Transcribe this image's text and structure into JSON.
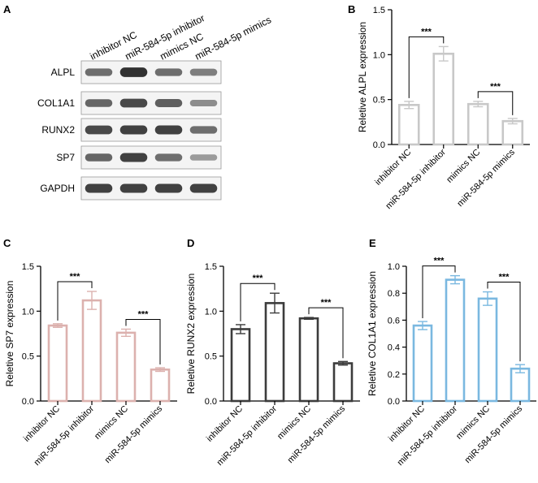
{
  "western_blot": {
    "panel": "A",
    "columns": [
      "inhibitor NC",
      "miR-584-5p inhibitor",
      "mimics NC",
      "miR-584-5p mimics"
    ],
    "rows": [
      "ALPL",
      "COL1A1",
      "RUNX2",
      "SP7",
      "GAPDH"
    ],
    "band_intensity": [
      [
        0.55,
        0.95,
        0.55,
        0.45
      ],
      [
        0.6,
        0.8,
        0.65,
        0.35
      ],
      [
        0.8,
        0.85,
        0.85,
        0.55
      ],
      [
        0.6,
        0.85,
        0.55,
        0.25
      ],
      [
        0.85,
        0.85,
        0.85,
        0.85
      ]
    ],
    "band_color": "#2a2a2a"
  },
  "chart_data": [
    {
      "panel": "B",
      "type": "bar",
      "categories": [
        "inhibitor NC",
        "miR-584-5p inhibitor",
        "mimics NC",
        "miR-584-5p mimics"
      ],
      "values": [
        0.44,
        1.01,
        0.45,
        0.26
      ],
      "errors": [
        0.04,
        0.08,
        0.03,
        0.03
      ],
      "ylabel": "Reletive ALPL expression",
      "ylim": [
        0,
        1.5
      ],
      "yticks": [
        "0.0",
        "0.5",
        "1.0",
        "1.5"
      ],
      "color": "#c8c8c8",
      "comparisons": [
        {
          "from": 0,
          "to": 1,
          "label": "***"
        },
        {
          "from": 2,
          "to": 3,
          "label": "***"
        }
      ]
    },
    {
      "panel": "C",
      "type": "bar",
      "categories": [
        "inhibitor NC",
        "miR-584-5p inhibitor",
        "mimics NC",
        "miR-584-5p mimics"
      ],
      "values": [
        0.84,
        1.12,
        0.76,
        0.35
      ],
      "errors": [
        0.02,
        0.1,
        0.04,
        0.02
      ],
      "ylabel": "Reletive SP7 expression",
      "ylim": [
        0,
        1.5
      ],
      "yticks": [
        "0.0",
        "0.5",
        "1.0",
        "1.5"
      ],
      "color": "#dcb1ae",
      "comparisons": [
        {
          "from": 0,
          "to": 1,
          "label": "***"
        },
        {
          "from": 2,
          "to": 3,
          "label": "***"
        }
      ]
    },
    {
      "panel": "D",
      "type": "bar",
      "categories": [
        "inhibitor NC",
        "miR-584-5p inhibitor",
        "mimics NC",
        "miR-584-5p mimics"
      ],
      "values": [
        0.8,
        1.09,
        0.92,
        0.42
      ],
      "errors": [
        0.05,
        0.11,
        0.01,
        0.02
      ],
      "ylabel": "Reletive RUNX2 expression",
      "ylim": [
        0,
        1.5
      ],
      "yticks": [
        "0.0",
        "0.5",
        "1.0",
        "1.5"
      ],
      "color": "#3c3c3c",
      "comparisons": [
        {
          "from": 0,
          "to": 1,
          "label": "***"
        },
        {
          "from": 2,
          "to": 3,
          "label": "***"
        }
      ]
    },
    {
      "panel": "E",
      "type": "bar",
      "categories": [
        "inhibitor NC",
        "miR-584-5p inhibitor",
        "mimics NC",
        "miR-584-5p mimics"
      ],
      "values": [
        0.56,
        0.9,
        0.76,
        0.24
      ],
      "errors": [
        0.03,
        0.03,
        0.05,
        0.03
      ],
      "ylabel": "Reletive COL1A1 expression",
      "ylim": [
        0,
        1.0
      ],
      "yticks": [
        "0.0",
        "0.2",
        "0.4",
        "0.6",
        "0.8",
        "1.0"
      ],
      "color": "#7ab8e0",
      "comparisons": [
        {
          "from": 0,
          "to": 1,
          "label": "***"
        },
        {
          "from": 2,
          "to": 3,
          "label": "***"
        }
      ]
    }
  ]
}
